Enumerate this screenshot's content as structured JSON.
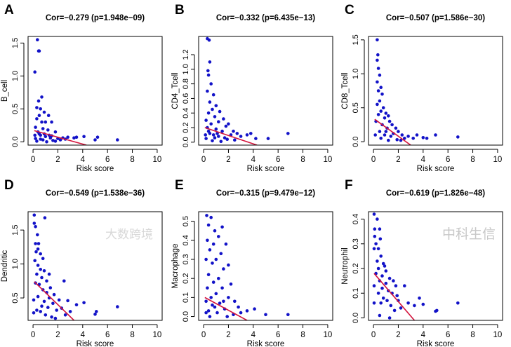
{
  "xlabel": "Risk score",
  "watermarks": [
    "大数跨境",
    "中科生信"
  ],
  "colors": {
    "points": "#1212c8",
    "fit": "#d4143c",
    "axis": "#000000"
  },
  "chart_data": [
    {
      "type": "scatter",
      "panel": "A",
      "title": "Cor=−0.279 (p=1.948e−09)",
      "xlabel": "Risk score",
      "ylabel": "B_cell",
      "xlim": [
        -0.4,
        10.4
      ],
      "xticks": [
        0,
        2,
        4,
        6,
        8,
        10
      ],
      "ylim": [
        -0.05,
        1.6
      ],
      "yticks": [
        "0.0",
        "0.5",
        "1.0",
        "1.5"
      ],
      "fit": [
        [
          0.1,
          0.17
        ],
        [
          4.3,
          -0.05
        ]
      ],
      "points": [
        [
          0.35,
          1.55
        ],
        [
          0.45,
          1.38
        ],
        [
          0.5,
          1.38
        ],
        [
          0.15,
          1.06
        ],
        [
          0.7,
          0.68
        ],
        [
          0.45,
          0.62
        ],
        [
          0.3,
          0.52
        ],
        [
          0.6,
          0.5
        ],
        [
          1.25,
          0.4
        ],
        [
          0.9,
          0.45
        ],
        [
          0.5,
          0.4
        ],
        [
          0.3,
          0.35
        ],
        [
          1.0,
          0.3
        ],
        [
          1.5,
          0.3
        ],
        [
          0.7,
          0.3
        ],
        [
          0.2,
          0.22
        ],
        [
          1.8,
          0.15
        ],
        [
          0.8,
          0.2
        ],
        [
          1.2,
          0.18
        ],
        [
          0.4,
          0.15
        ],
        [
          0.6,
          0.1
        ],
        [
          1.0,
          0.08
        ],
        [
          1.4,
          0.06
        ],
        [
          0.2,
          0.05
        ],
        [
          0.8,
          0.03
        ],
        [
          1.6,
          0.02
        ],
        [
          2.0,
          0.05
        ],
        [
          2.4,
          0.06
        ],
        [
          2.8,
          0.07
        ],
        [
          3.3,
          0.06
        ],
        [
          3.5,
          0.07
        ],
        [
          4.1,
          0.08
        ],
        [
          5.0,
          0.03
        ],
        [
          5.2,
          0.07
        ],
        [
          6.8,
          0.03
        ],
        [
          0.3,
          0.01
        ],
        [
          1.1,
          0.0
        ],
        [
          1.8,
          0.01
        ],
        [
          0.5,
          0.12
        ],
        [
          2.2,
          0.03
        ],
        [
          0.9,
          0.12
        ],
        [
          1.3,
          0.1
        ],
        [
          0.15,
          0.1
        ],
        [
          0.6,
          0.04
        ],
        [
          1.5,
          0.09
        ],
        [
          2.6,
          0.04
        ]
      ]
    },
    {
      "type": "scatter",
      "panel": "B",
      "title": "Cor=−0.332 (p=6.435e−13)",
      "xlabel": "Risk score",
      "ylabel": "CD4_Tcell",
      "xlim": [
        -0.4,
        10.4
      ],
      "xticks": [
        0,
        2,
        4,
        6,
        8,
        10
      ],
      "ylim": [
        -0.04,
        1.45
      ],
      "yticks": [
        "0.0",
        "0.2",
        "0.4",
        "0.6",
        "0.8",
        "1.0",
        "1.2"
      ],
      "fit": [
        [
          0.1,
          0.2
        ],
        [
          4.3,
          -0.04
        ]
      ],
      "points": [
        [
          0.3,
          1.42
        ],
        [
          0.45,
          1.4
        ],
        [
          0.5,
          1.1
        ],
        [
          0.35,
          0.98
        ],
        [
          0.4,
          0.92
        ],
        [
          0.6,
          0.8
        ],
        [
          0.3,
          0.7
        ],
        [
          0.8,
          0.65
        ],
        [
          0.5,
          0.55
        ],
        [
          1.0,
          0.5
        ],
        [
          0.7,
          0.45
        ],
        [
          1.3,
          0.42
        ],
        [
          0.4,
          0.4
        ],
        [
          0.9,
          0.35
        ],
        [
          1.6,
          0.32
        ],
        [
          0.2,
          0.3
        ],
        [
          1.2,
          0.28
        ],
        [
          0.6,
          0.25
        ],
        [
          1.8,
          0.22
        ],
        [
          2.0,
          0.25
        ],
        [
          0.3,
          0.2
        ],
        [
          1.0,
          0.18
        ],
        [
          1.5,
          0.15
        ],
        [
          2.4,
          0.15
        ],
        [
          0.5,
          0.12
        ],
        [
          0.8,
          0.1
        ],
        [
          1.2,
          0.08
        ],
        [
          1.7,
          0.06
        ],
        [
          2.2,
          0.1
        ],
        [
          2.7,
          0.12
        ],
        [
          3.0,
          0.08
        ],
        [
          3.5,
          0.1
        ],
        [
          3.8,
          0.12
        ],
        [
          4.2,
          0.05
        ],
        [
          5.2,
          0.05
        ],
        [
          6.8,
          0.12
        ],
        [
          0.2,
          0.05
        ],
        [
          0.7,
          0.02
        ],
        [
          1.4,
          0.01
        ],
        [
          2.5,
          0.03
        ],
        [
          0.4,
          0.15
        ],
        [
          1.1,
          0.12
        ],
        [
          0.15,
          0.1
        ],
        [
          1.9,
          0.04
        ],
        [
          0.9,
          0.06
        ]
      ]
    },
    {
      "type": "scatter",
      "panel": "C",
      "title": "Cor=−0.507 (p=1.586e−30)",
      "xlabel": "Risk score",
      "ylabel": "CD8_Tcell",
      "xlim": [
        -0.4,
        10.4
      ],
      "xticks": [
        0,
        2,
        4,
        6,
        8,
        10
      ],
      "ylim": [
        -0.05,
        1.55
      ],
      "yticks": [
        "0.0",
        "0.5",
        "1.0",
        "1.5"
      ],
      "fit": [
        [
          0.1,
          0.33
        ],
        [
          3.0,
          -0.05
        ]
      ],
      "points": [
        [
          0.3,
          1.5
        ],
        [
          0.35,
          1.28
        ],
        [
          0.3,
          1.2
        ],
        [
          0.4,
          1.08
        ],
        [
          0.5,
          0.98
        ],
        [
          0.3,
          0.88
        ],
        [
          0.6,
          0.8
        ],
        [
          0.4,
          0.75
        ],
        [
          0.7,
          0.7
        ],
        [
          0.5,
          0.6
        ],
        [
          0.3,
          0.55
        ],
        [
          0.8,
          0.5
        ],
        [
          0.6,
          0.45
        ],
        [
          1.0,
          0.42
        ],
        [
          0.4,
          0.4
        ],
        [
          1.2,
          0.38
        ],
        [
          0.9,
          0.35
        ],
        [
          0.2,
          0.3
        ],
        [
          1.3,
          0.3
        ],
        [
          1.5,
          0.25
        ],
        [
          0.7,
          0.25
        ],
        [
          1.8,
          0.2
        ],
        [
          1.1,
          0.2
        ],
        [
          2.0,
          0.15
        ],
        [
          0.5,
          0.15
        ],
        [
          1.6,
          0.12
        ],
        [
          2.3,
          0.1
        ],
        [
          0.9,
          0.1
        ],
        [
          1.4,
          0.08
        ],
        [
          2.5,
          0.05
        ],
        [
          2.8,
          0.08
        ],
        [
          3.2,
          0.05
        ],
        [
          3.5,
          0.1
        ],
        [
          4.0,
          0.06
        ],
        [
          4.3,
          0.05
        ],
        [
          5.0,
          0.1
        ],
        [
          6.8,
          0.07
        ],
        [
          1.9,
          0.03
        ],
        [
          0.6,
          0.05
        ],
        [
          1.2,
          0.02
        ],
        [
          2.2,
          0.02
        ],
        [
          0.15,
          0.1
        ],
        [
          1.0,
          0.15
        ]
      ]
    },
    {
      "type": "scatter",
      "panel": "D",
      "title": "Cor=−0.549 (p=1.538e−36)",
      "xlabel": "Risk score",
      "ylabel": "Dendritic",
      "xlim": [
        -0.4,
        10.4
      ],
      "xticks": [
        0,
        2,
        4,
        6,
        8,
        10
      ],
      "ylim": [
        0.17,
        1.77
      ],
      "yticks": [
        "0.5",
        "1.0",
        "1.5"
      ],
      "fit": [
        [
          0.1,
          0.74
        ],
        [
          3.3,
          0.17
        ]
      ],
      "points": [
        [
          0.1,
          1.72
        ],
        [
          0.95,
          1.68
        ],
        [
          0.1,
          1.6
        ],
        [
          0.2,
          1.55
        ],
        [
          0.35,
          1.43
        ],
        [
          0.2,
          1.3
        ],
        [
          0.45,
          1.3
        ],
        [
          0.4,
          1.22
        ],
        [
          0.25,
          1.18
        ],
        [
          0.6,
          1.15
        ],
        [
          0.15,
          1.05
        ],
        [
          0.8,
          1.08
        ],
        [
          0.4,
          0.98
        ],
        [
          0.6,
          0.92
        ],
        [
          0.9,
          0.9
        ],
        [
          0.3,
          0.85
        ],
        [
          1.3,
          0.85
        ],
        [
          0.7,
          0.8
        ],
        [
          2.5,
          0.75
        ],
        [
          1.1,
          0.75
        ],
        [
          0.2,
          0.72
        ],
        [
          0.5,
          0.7
        ],
        [
          1.4,
          0.65
        ],
        [
          0.8,
          0.62
        ],
        [
          1.1,
          0.58
        ],
        [
          1.7,
          0.55
        ],
        [
          0.4,
          0.52
        ],
        [
          1.3,
          0.5
        ],
        [
          0.05,
          0.47
        ],
        [
          2.1,
          0.47
        ],
        [
          2.8,
          0.46
        ],
        [
          0.9,
          0.45
        ],
        [
          1.6,
          0.42
        ],
        [
          4.1,
          0.43
        ],
        [
          3.5,
          0.4
        ],
        [
          0.7,
          0.38
        ],
        [
          1.2,
          0.36
        ],
        [
          6.8,
          0.37
        ],
        [
          2.3,
          0.35
        ],
        [
          1.9,
          0.32
        ],
        [
          0.6,
          0.3
        ],
        [
          3.0,
          0.3
        ],
        [
          0.05,
          0.28
        ],
        [
          1.0,
          0.25
        ],
        [
          1.5,
          0.22
        ],
        [
          5.1,
          0.3
        ],
        [
          5.0,
          0.26
        ],
        [
          1.8,
          0.2
        ],
        [
          2.6,
          0.25
        ],
        [
          0.3,
          0.32
        ]
      ]
    },
    {
      "type": "scatter",
      "panel": "E",
      "title": "Cor=−0.315 (p=9.479e−12)",
      "xlabel": "Risk score",
      "ylabel": "Macrophage",
      "xlim": [
        -0.4,
        10.4
      ],
      "xticks": [
        0,
        2,
        4,
        6,
        8,
        10
      ],
      "ylim": [
        -0.02,
        0.55
      ],
      "yticks": [
        "0.0",
        "0.1",
        "0.2",
        "0.3",
        "0.4",
        "0.5"
      ],
      "fit": [
        [
          0.1,
          0.1
        ],
        [
          3.5,
          -0.02
        ]
      ],
      "points": [
        [
          0.25,
          0.53
        ],
        [
          0.6,
          0.52
        ],
        [
          0.4,
          0.48
        ],
        [
          1.5,
          0.47
        ],
        [
          0.9,
          0.45
        ],
        [
          1.2,
          0.42
        ],
        [
          0.3,
          0.4
        ],
        [
          0.8,
          0.38
        ],
        [
          1.8,
          0.38
        ],
        [
          0.5,
          0.35
        ],
        [
          1.4,
          0.33
        ],
        [
          0.2,
          0.3
        ],
        [
          1.0,
          0.3
        ],
        [
          0.7,
          0.28
        ],
        [
          2.0,
          0.27
        ],
        [
          1.6,
          0.25
        ],
        [
          0.4,
          0.22
        ],
        [
          1.2,
          0.2
        ],
        [
          0.8,
          0.18
        ],
        [
          2.2,
          0.17
        ],
        [
          0.3,
          0.15
        ],
        [
          1.5,
          0.15
        ],
        [
          1.0,
          0.12
        ],
        [
          0.6,
          0.1
        ],
        [
          2.0,
          0.1
        ],
        [
          2.5,
          0.08
        ],
        [
          0.2,
          0.08
        ],
        [
          1.3,
          0.07
        ],
        [
          0.9,
          0.05
        ],
        [
          1.7,
          0.04
        ],
        [
          2.8,
          0.05
        ],
        [
          0.4,
          0.03
        ],
        [
          1.1,
          0.02
        ],
        [
          3.0,
          0.02
        ],
        [
          3.5,
          0.03
        ],
        [
          4.1,
          0.04
        ],
        [
          5.0,
          0.01
        ],
        [
          6.8,
          0.01
        ],
        [
          0.5,
          0.0
        ],
        [
          1.9,
          0.0
        ],
        [
          2.4,
          0.01
        ],
        [
          0.2,
          0.02
        ],
        [
          1.6,
          0.08
        ],
        [
          0.7,
          0.06
        ]
      ]
    },
    {
      "type": "scatter",
      "panel": "F",
      "title": "Cor=−0.619 (p=1.826e−48)",
      "xlabel": "Risk score",
      "ylabel": "Neutrophil",
      "xlim": [
        -0.4,
        10.4
      ],
      "xticks": [
        0,
        2,
        4,
        6,
        8,
        10
      ],
      "ylim": [
        -0.01,
        0.43
      ],
      "yticks": [
        "0.0",
        "0.1",
        "0.2",
        "0.3",
        "0.4"
      ],
      "fit": [
        [
          0.05,
          0.18
        ],
        [
          3.3,
          -0.01
        ]
      ],
      "points": [
        [
          0.05,
          0.42
        ],
        [
          0.3,
          0.4
        ],
        [
          0.1,
          0.36
        ],
        [
          0.5,
          0.36
        ],
        [
          0.1,
          0.33
        ],
        [
          0.55,
          0.32
        ],
        [
          0.2,
          0.3
        ],
        [
          0.4,
          0.28
        ],
        [
          0.05,
          0.28
        ],
        [
          0.6,
          0.25
        ],
        [
          0.3,
          0.23
        ],
        [
          0.8,
          0.22
        ],
        [
          0.4,
          0.2
        ],
        [
          0.9,
          0.21
        ],
        [
          1.0,
          0.19
        ],
        [
          0.2,
          0.18
        ],
        [
          0.7,
          0.17
        ],
        [
          1.3,
          0.16
        ],
        [
          0.5,
          0.15
        ],
        [
          1.0,
          0.14
        ],
        [
          1.6,
          0.15
        ],
        [
          1.8,
          0.13
        ],
        [
          0.05,
          0.13
        ],
        [
          2.5,
          0.13
        ],
        [
          0.7,
          0.12
        ],
        [
          1.2,
          0.11
        ],
        [
          0.4,
          0.1
        ],
        [
          1.5,
          0.1
        ],
        [
          1.9,
          0.09
        ],
        [
          0.8,
          0.08
        ],
        [
          1.1,
          0.07
        ],
        [
          2.0,
          0.07
        ],
        [
          3.7,
          0.08
        ],
        [
          0.6,
          0.06
        ],
        [
          1.4,
          0.05
        ],
        [
          0.05,
          0.06
        ],
        [
          2.8,
          0.06
        ],
        [
          3.3,
          0.05
        ],
        [
          4.0,
          0.055
        ],
        [
          6.8,
          0.06
        ],
        [
          5.0,
          0.027
        ],
        [
          5.1,
          0.03
        ],
        [
          0.5,
          0.01
        ],
        [
          1.3,
          0.0
        ],
        [
          2.2,
          0.04
        ],
        [
          1.7,
          0.03
        ]
      ]
    }
  ]
}
